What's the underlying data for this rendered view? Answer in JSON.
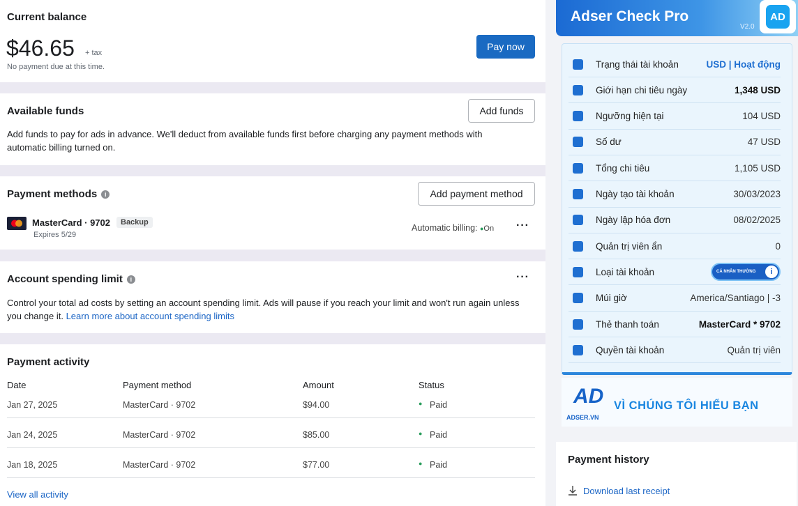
{
  "balance": {
    "title": "Current balance",
    "amount": "$46.65",
    "tax": "+ tax",
    "note": "No payment due at this time.",
    "button": "Pay now"
  },
  "funds": {
    "title": "Available funds",
    "description": "Add funds to pay for ads in advance. We'll deduct from available funds first before charging any payment methods with automatic billing turned on.",
    "button": "Add funds"
  },
  "payment_methods": {
    "title": "Payment methods",
    "button": "Add payment method",
    "card": {
      "name": "MasterCard · 9702",
      "badge": "Backup",
      "expires": "Expires 5/29",
      "billing_label": "Automatic billing:",
      "billing_status": "On"
    }
  },
  "spending_limit": {
    "title": "Account spending limit",
    "description": "Control your total ad costs by setting an account spending limit. Ads will pause if you reach your limit and won't run again unless you change it.",
    "link": "Learn more about account spending limits"
  },
  "activity": {
    "title": "Payment activity",
    "columns": [
      "Date",
      "Payment method",
      "Amount",
      "Status"
    ],
    "rows": [
      [
        "Jan 27, 2025",
        "MasterCard · 9702",
        "$94.00",
        "Paid"
      ],
      [
        "Jan 24, 2025",
        "MasterCard · 9702",
        "$85.00",
        "Paid"
      ],
      [
        "Jan 18, 2025",
        "MasterCard · 9702",
        "$77.00",
        "Paid"
      ]
    ],
    "link": "View all activity"
  },
  "extension": {
    "title": "Adser Check Pro",
    "version": "V2.0",
    "rows": [
      {
        "label": "Trạng thái tài khoản",
        "value": "USD | Hoạt động"
      },
      {
        "label": "Giới hạn chi tiêu ngày",
        "value": "1,348 USD"
      },
      {
        "label": "Ngưỡng hiện tại",
        "value": "104 USD"
      },
      {
        "label": "Số dư",
        "value": "47 USD"
      },
      {
        "label": "Tổng chi tiêu",
        "value": "1,105 USD"
      },
      {
        "label": "Ngày tạo tài khoản",
        "value": "30/03/2023"
      },
      {
        "label": "Ngày lập hóa đơn",
        "value": "08/02/2025"
      },
      {
        "label": "Quản trị viên ẩn",
        "value": "0"
      },
      {
        "label": "Loại tài khoản",
        "value": "CÁ NHÂN THƯỜNG"
      },
      {
        "label": "Múi giờ",
        "value": "America/Santiago | -3"
      },
      {
        "label": "Thẻ thanh toán",
        "value": "MasterCard * 9702"
      },
      {
        "label": "Quyền tài khoản",
        "value": "Quản trị viên"
      }
    ],
    "brand": "ADSER.VN",
    "slogan": "VÌ CHÚNG TÔI HIỂU BẠN"
  },
  "history": {
    "title": "Payment history",
    "link": "Download last receipt"
  }
}
